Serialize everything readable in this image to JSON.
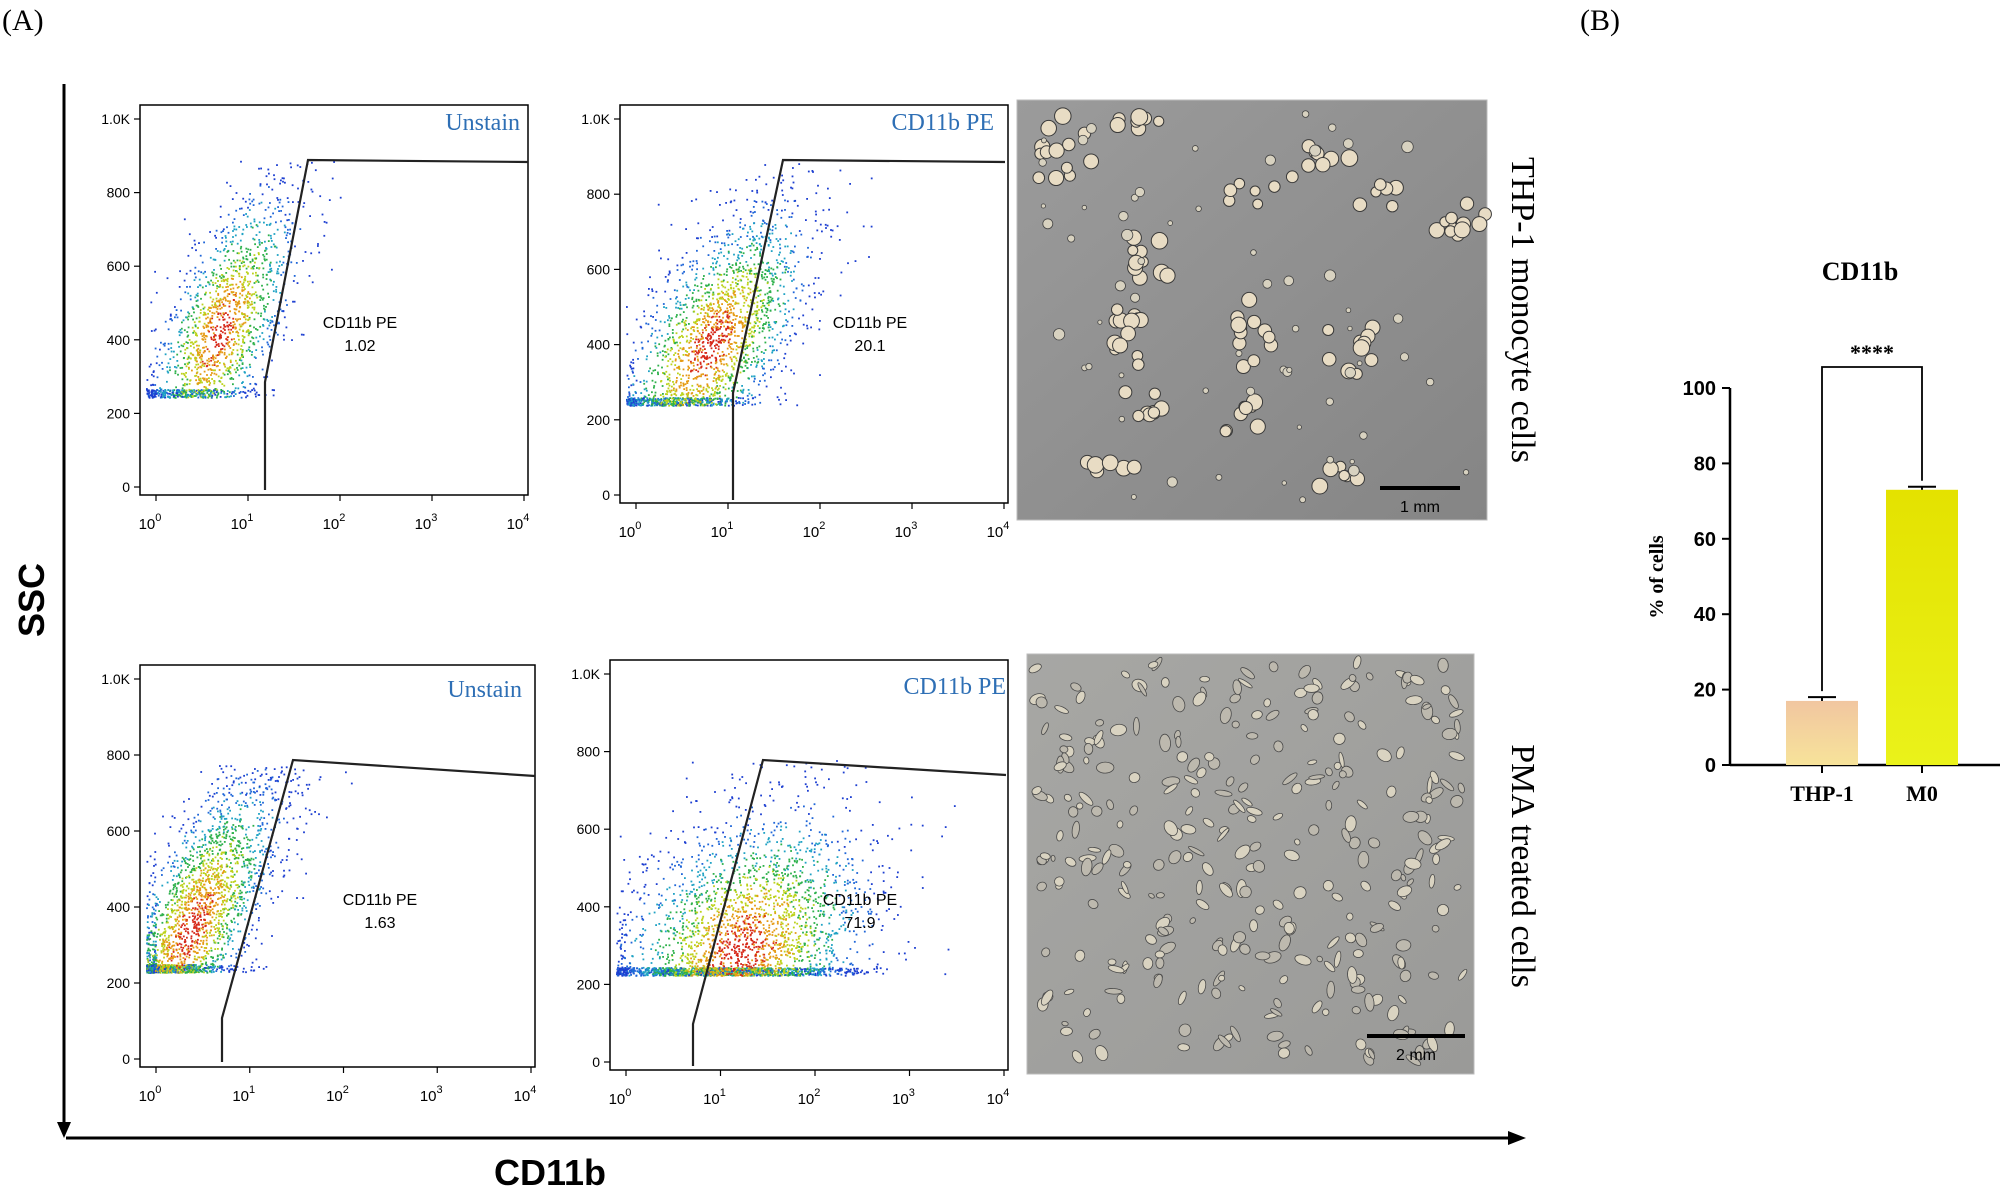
{
  "panel_labels": {
    "a": "(A)",
    "b": "(B)"
  },
  "axes": {
    "y_title": "SSC",
    "x_title": "CD11b"
  },
  "row_labels": [
    "THP-1 monocyte cells",
    "PMA treated cells"
  ],
  "scale_bars": [
    "1 mm",
    "2 mm"
  ],
  "flow_plots": [
    {
      "title": "Unstain",
      "gate_label": "CD11b PE",
      "gate_value": "1.02"
    },
    {
      "title": "CD11b PE",
      "gate_label": "CD11b PE",
      "gate_value": "20.1"
    },
    {
      "title": "Unstain",
      "gate_label": "CD11b PE",
      "gate_value": "1.63"
    },
    {
      "title": "CD11b PE",
      "gate_label": "CD11b PE",
      "gate_value": "71.9"
    }
  ],
  "flow_axis": {
    "y_ticks": [
      "1.0K",
      "800",
      "600",
      "400",
      "200",
      "0"
    ],
    "x_ticks": [
      {
        "base": "10",
        "exp": "0"
      },
      {
        "base": "10",
        "exp": "1"
      },
      {
        "base": "10",
        "exp": "2"
      },
      {
        "base": "10",
        "exp": "3"
      },
      {
        "base": "10",
        "exp": "4"
      }
    ]
  },
  "colors": {
    "label_blue": "#2e6fb5",
    "bar_thp1": "#f4c89a",
    "bar_m0": "#e2e000"
  },
  "chart_data": {
    "type": "bar",
    "title": "CD11b",
    "categories": [
      "THP-1",
      "M0"
    ],
    "values": [
      17,
      73
    ],
    "errors": [
      1,
      0.8
    ],
    "ylabel": "% of cells",
    "xlabel": "",
    "ylim": [
      0,
      100
    ],
    "yticks": [
      0,
      20,
      40,
      60,
      80,
      100
    ],
    "significance": "****"
  }
}
